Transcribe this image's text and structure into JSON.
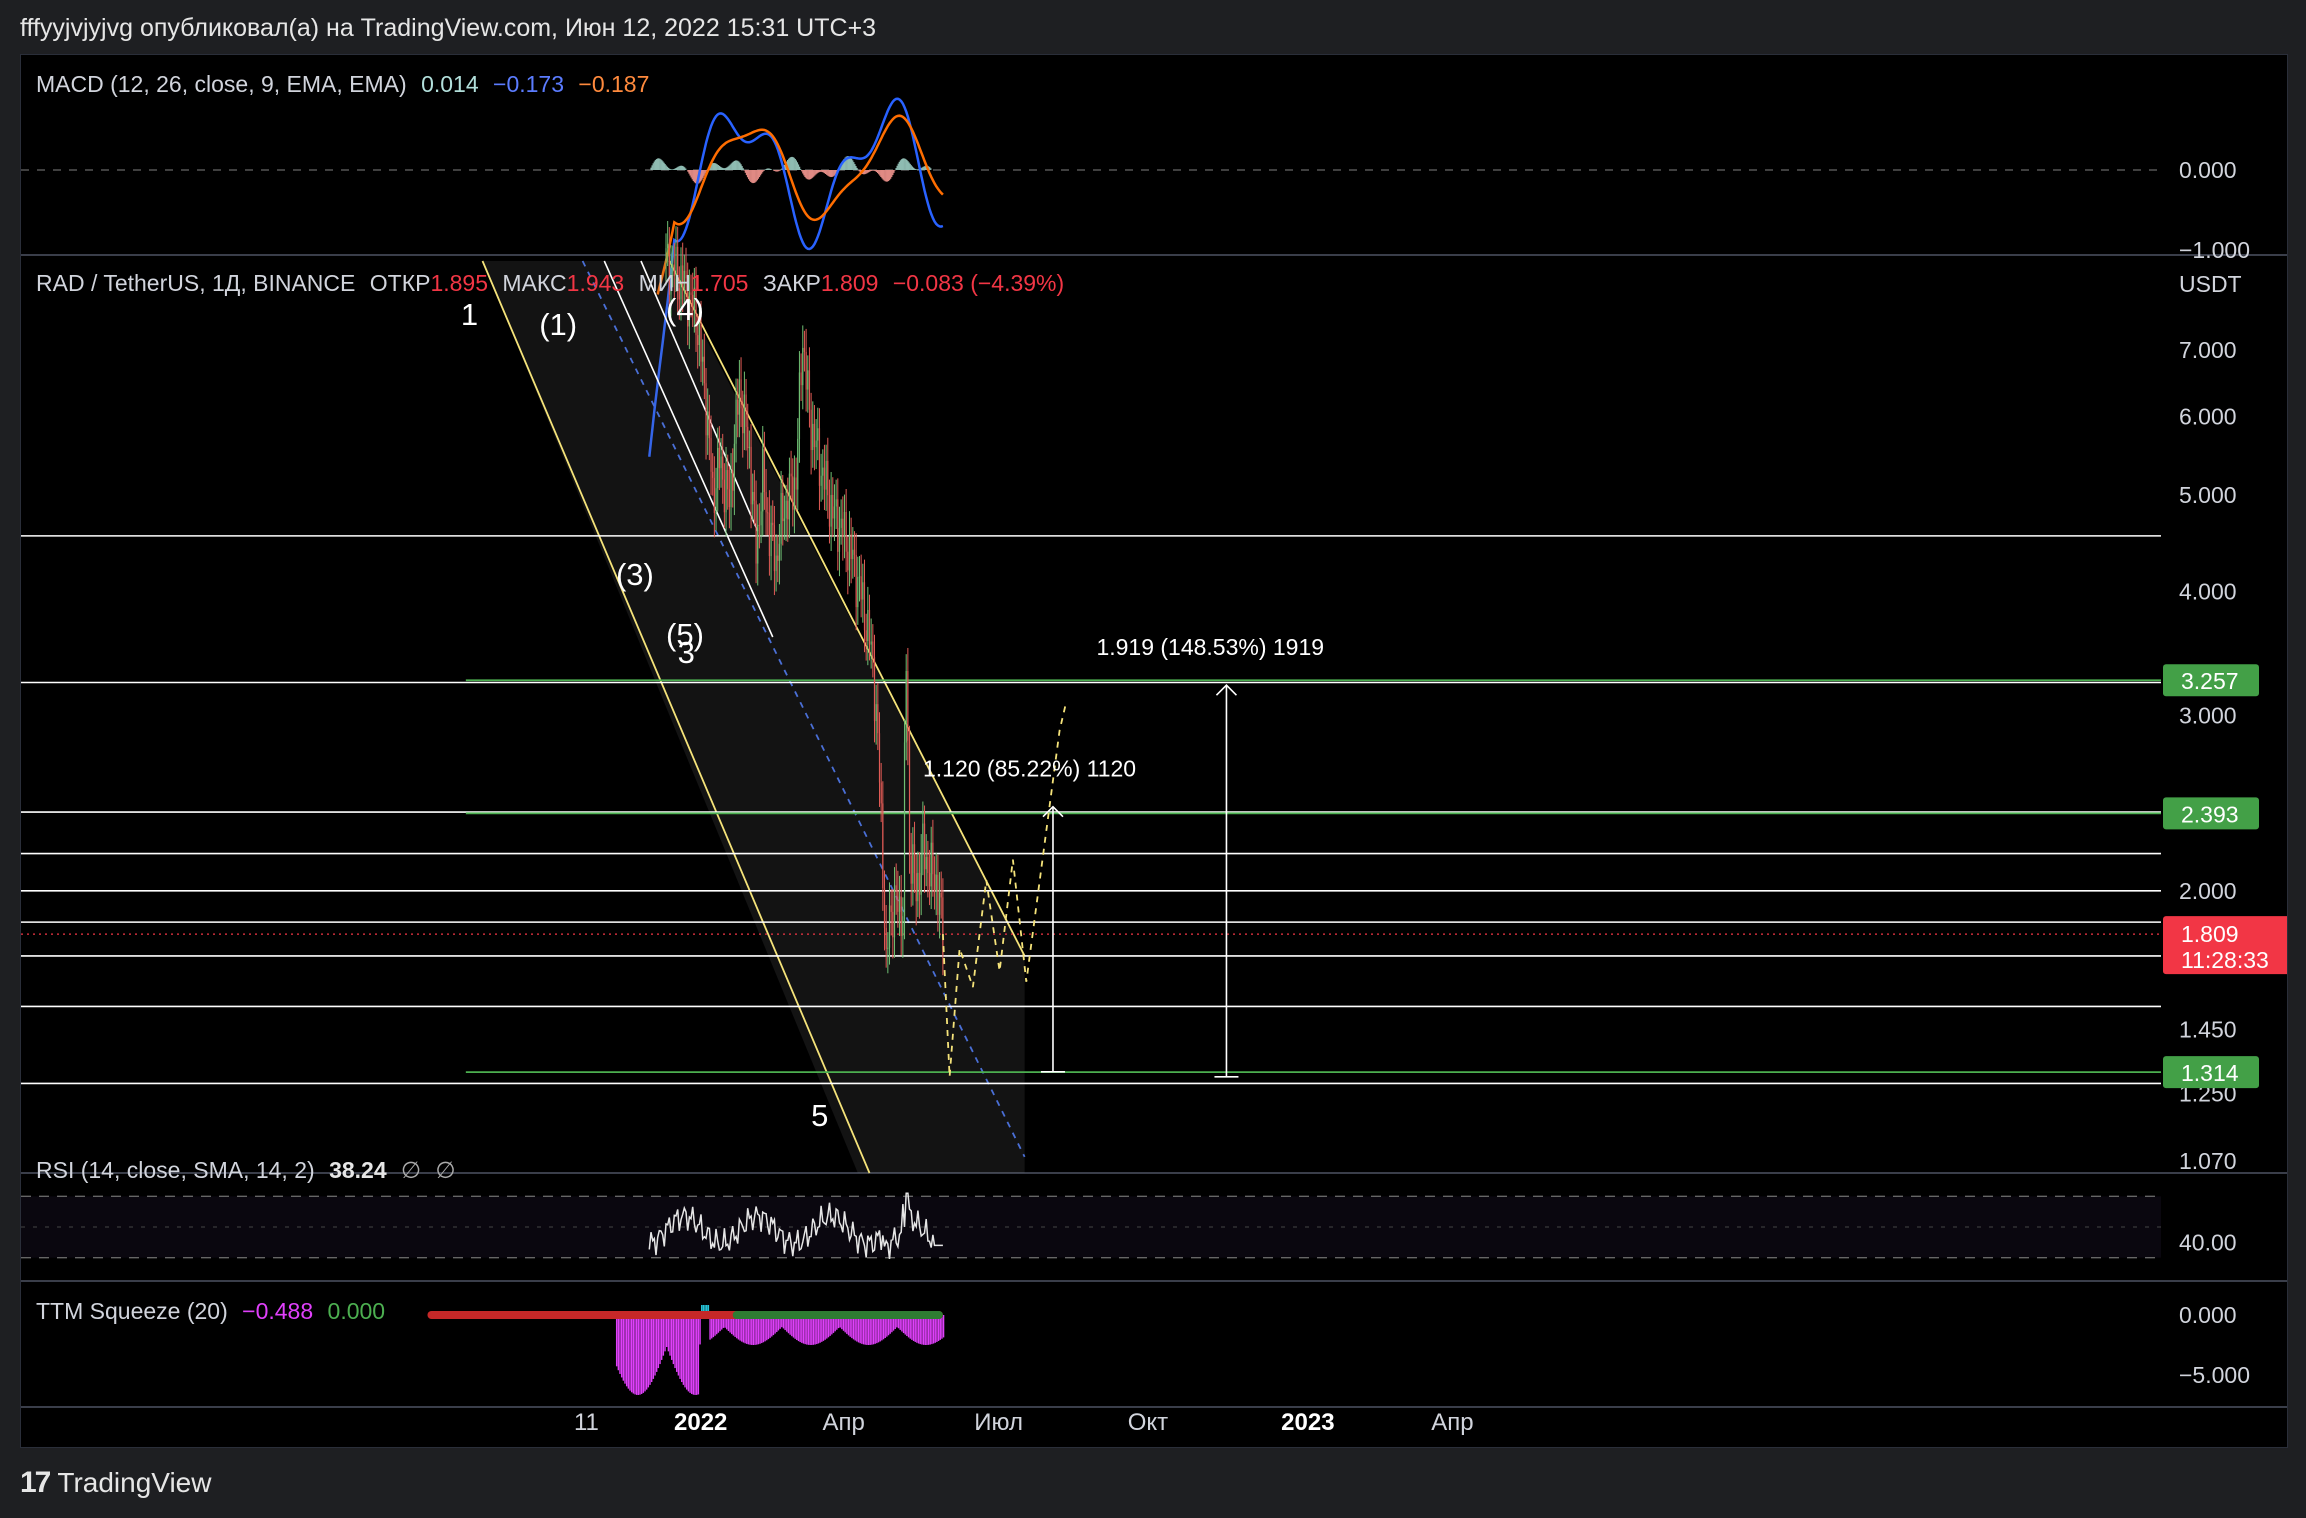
{
  "header": {
    "text": "fffyyjvjyjvg опубликовал(а) на TradingView.com, Июн 12, 2022 15:31 UTC+3"
  },
  "footer": {
    "brand": "TradingView",
    "logo": "17"
  },
  "colors": {
    "bg": "#000000",
    "grid": "#2a2e39",
    "up": "#26a69a",
    "down": "#ef5350",
    "candle_up": "#6fbf73",
    "candle_down": "#e05a55",
    "channel": "#f5e37a",
    "green_line": "#4caf50",
    "macd": "#2962ff",
    "signal": "#ff6d00",
    "rsi": "#e6e6e6",
    "price_badge": "#f23645",
    "level_badge": "#43a047",
    "magenta": "#e040fb"
  },
  "macd": {
    "legend": {
      "title": "MACD (12, 26, close, 9, EMA, EMA)",
      "hist": "0.014",
      "macd": "−0.173",
      "signal": "−0.187"
    },
    "axis": [
      "0.000",
      "−1.000"
    ],
    "range": [
      -1.35,
      0.35
    ]
  },
  "main": {
    "legend": {
      "symbol": "RAD / TetherUS, 1Д, BINANCE",
      "o_label": "ОТКР",
      "o": "1.895",
      "h_label": "МАКС",
      "h": "1.943",
      "l_label": "МИН",
      "l": "1.705",
      "c_label": "ЗАКР",
      "c": "1.809",
      "change": "−0.083 (−4.39%)"
    },
    "currency": "USDT",
    "axis": [
      "7.000",
      "6.000",
      "5.000",
      "4.000",
      "3.000",
      "2.000",
      "1.450",
      "1.250",
      "1.070"
    ],
    "axis_values": [
      7.0,
      6.0,
      5.0,
      4.0,
      3.0,
      2.0,
      1.45,
      1.25,
      1.07
    ],
    "log_scale": true,
    "range": [
      1.05,
      8.6
    ],
    "last_price": {
      "value": "1.809",
      "countdown": "11:28:33"
    },
    "levels": [
      {
        "value": "3.257",
        "num": 3.257
      },
      {
        "value": "2.393",
        "num": 2.393
      },
      {
        "value": "1.314",
        "num": 1.314
      }
    ],
    "white_levels": [
      4.55,
      3.24,
      2.4,
      2.18,
      2.0,
      1.86,
      1.72,
      1.53,
      1.28
    ],
    "wave_labels": [
      "1",
      "(1)",
      "(4)",
      "(3)",
      "(5)",
      "3",
      "5"
    ],
    "measures": [
      {
        "text": "1.919 (148.53%) 1919",
        "from": 1.3,
        "to": 3.22
      },
      {
        "text": "1.120 (85.22%) 1120",
        "from": 1.315,
        "to": 2.43
      }
    ],
    "chart_data": {
      "type": "candlestick",
      "note": "RAD/USDT daily, approximate path",
      "path": [
        [
          0,
          8.6
        ],
        [
          10,
          8.2
        ],
        [
          18,
          7.6
        ],
        [
          24,
          6.2
        ],
        [
          28,
          5.0
        ],
        [
          32,
          5.4
        ],
        [
          38,
          4.9
        ],
        [
          44,
          6.4
        ],
        [
          50,
          5.5
        ],
        [
          54,
          4.4
        ],
        [
          58,
          5.2
        ],
        [
          62,
          4.6
        ],
        [
          66,
          4.3
        ],
        [
          70,
          4.8
        ],
        [
          74,
          5.0
        ],
        [
          78,
          5.2
        ],
        [
          82,
          7.2
        ],
        [
          86,
          6.0
        ],
        [
          92,
          5.4
        ],
        [
          100,
          4.8
        ],
        [
          106,
          4.6
        ],
        [
          112,
          4.3
        ],
        [
          118,
          3.9
        ],
        [
          124,
          3.4
        ],
        [
          128,
          2.6
        ],
        [
          132,
          1.65
        ],
        [
          134,
          1.9
        ],
        [
          138,
          1.95
        ],
        [
          142,
          1.9
        ],
        [
          144,
          3.4
        ],
        [
          146,
          2.2
        ],
        [
          150,
          2.0
        ],
        [
          154,
          2.2
        ],
        [
          158,
          2.1
        ],
        [
          162,
          2.05
        ],
        [
          166,
          1.809
        ]
      ]
    },
    "projection": [
      [
        166,
        1.809
      ],
      [
        170,
        1.3
      ],
      [
        176,
        1.75
      ],
      [
        184,
        1.6
      ],
      [
        192,
        2.05
      ],
      [
        200,
        1.66
      ],
      [
        208,
        2.15
      ],
      [
        216,
        1.62
      ],
      [
        236,
        2.9
      ],
      [
        240,
        3.1
      ]
    ]
  },
  "rsi": {
    "legend": {
      "title": "RSI (14, close, SMA, 14, 2)",
      "value": "38.24",
      "sym1": "∅",
      "sym2": "∅"
    },
    "axis": [
      "40.00"
    ],
    "range": [
      20,
      80
    ]
  },
  "ttm": {
    "legend": {
      "title": "TTM Squeeze (20)",
      "v1": "−0.488",
      "v2": "0.000"
    },
    "axis": [
      "0.000",
      "−5.000"
    ],
    "range": [
      -8,
      2
    ]
  },
  "x_axis": {
    "labels": [
      {
        "text": "11",
        "bold": false,
        "day": -42
      },
      {
        "text": "2022",
        "bold": true,
        "day": 18
      },
      {
        "text": "Апр",
        "bold": false,
        "day": 107
      },
      {
        "text": "Июл",
        "bold": false,
        "day": 198
      },
      {
        "text": "Окт",
        "bold": false,
        "day": 290
      },
      {
        "text": "2023",
        "bold": true,
        "day": 382
      },
      {
        "text": "Апр",
        "bold": false,
        "day": 472
      }
    ]
  }
}
